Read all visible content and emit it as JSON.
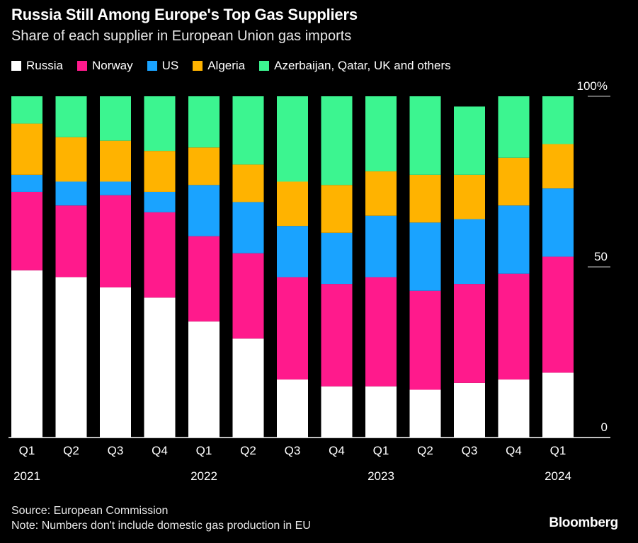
{
  "chart_data": {
    "type": "bar",
    "stacked": true,
    "title": "Russia Still Among Europe's Top Gas Suppliers",
    "subtitle": "Share of each supplier in European Union gas imports",
    "categories": [
      "Q1 2021",
      "Q2",
      "Q3",
      "Q4",
      "Q1 2022",
      "Q2",
      "Q3",
      "Q4",
      "Q1 2023",
      "Q2",
      "Q3",
      "Q4",
      "Q1 2024"
    ],
    "tick_labels": [
      {
        "q": "Q1",
        "year": "2021"
      },
      {
        "q": "Q2",
        "year": ""
      },
      {
        "q": "Q3",
        "year": ""
      },
      {
        "q": "Q4",
        "year": ""
      },
      {
        "q": "Q1",
        "year": "2022"
      },
      {
        "q": "Q2",
        "year": ""
      },
      {
        "q": "Q3",
        "year": ""
      },
      {
        "q": "Q4",
        "year": ""
      },
      {
        "q": "Q1",
        "year": "2023"
      },
      {
        "q": "Q2",
        "year": ""
      },
      {
        "q": "Q3",
        "year": ""
      },
      {
        "q": "Q4",
        "year": ""
      },
      {
        "q": "Q1",
        "year": "2024"
      }
    ],
    "series": [
      {
        "name": "Russia",
        "color": "#ffffff",
        "values": [
          49,
          47,
          44,
          41,
          34,
          29,
          17,
          15,
          15,
          14,
          16,
          17,
          19
        ]
      },
      {
        "name": "Norway",
        "color": "#ff1a8c",
        "values": [
          23,
          21,
          27,
          25,
          25,
          25,
          30,
          30,
          32,
          29,
          29,
          31,
          34
        ]
      },
      {
        "name": "US",
        "color": "#1aa3ff",
        "values": [
          5,
          7,
          4,
          6,
          15,
          15,
          15,
          15,
          18,
          20,
          19,
          20,
          20
        ]
      },
      {
        "name": "Algeria",
        "color": "#ffb300",
        "values": [
          15,
          13,
          12,
          12,
          11,
          11,
          13,
          14,
          13,
          14,
          13,
          14,
          13
        ]
      },
      {
        "name": "Azerbaijan, Qatar, UK and others",
        "color": "#3cf590",
        "values": [
          8,
          12,
          13,
          16,
          15,
          20,
          25,
          26,
          22,
          23,
          20,
          18,
          14
        ]
      }
    ],
    "yticks": [
      {
        "value": 100,
        "label": "100%"
      },
      {
        "value": 50,
        "label": "50"
      },
      {
        "value": 0,
        "label": "0"
      }
    ],
    "ylim": [
      0,
      100
    ],
    "legend_position": "top-left"
  },
  "footer": {
    "source": "Source: European Commission",
    "note": "Note: Numbers don't include domestic gas production in EU"
  },
  "brand": "Bloomberg"
}
